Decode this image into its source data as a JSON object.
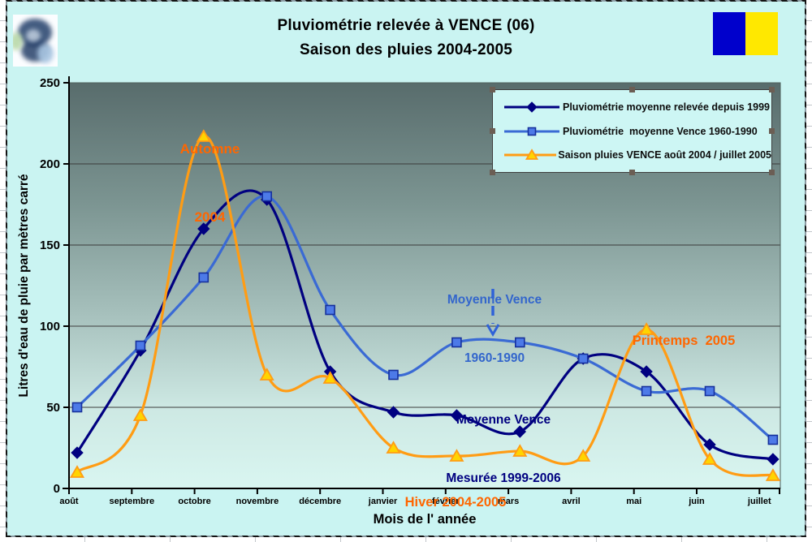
{
  "chart_data": {
    "type": "line",
    "title": [
      "Pluviométrie relevée à VENCE (06)",
      "Saison des pluies 2004-2005"
    ],
    "categories": [
      "août",
      "septembre",
      "octobre",
      "novembre",
      "décembre",
      "janvier",
      "février",
      "mars",
      "avril",
      "mai",
      "juin",
      "juillet"
    ],
    "series": [
      {
        "name": "Pluviométrie moyenne relevée depuis 1999",
        "color": "#000080",
        "marker": "diamond",
        "marker_fill": "#000080",
        "values": [
          22,
          85,
          160,
          178,
          72,
          47,
          45,
          35,
          80,
          72,
          27,
          18
        ]
      },
      {
        "name": "Pluviométrie  moyenne Vence 1960-1990",
        "color": "#3a6ad4",
        "marker": "square",
        "marker_fill": "#4d7ae8",
        "values": [
          50,
          88,
          130,
          180,
          110,
          70,
          90,
          90,
          80,
          60,
          60,
          30
        ]
      },
      {
        "name": "Saison pluies VENCE août 2004 / juillet 2005",
        "color": "#ff9c14",
        "marker": "triangle-up",
        "marker_fill": "#ffd400",
        "values": [
          10,
          45,
          217,
          70,
          68,
          25,
          20,
          23,
          20,
          98,
          18,
          8
        ]
      }
    ],
    "xlabel": "Mois de l' année",
    "ylabel": "Litres d'eau de pluie par mètres carré",
    "ylim": [
      0,
      250
    ],
    "yticks": [
      0,
      50,
      100,
      150,
      200,
      250
    ],
    "grid": true,
    "smooth": true,
    "legend_position": "top-right",
    "annotations": [
      {
        "lines": [
          "Automne",
          "2004"
        ],
        "color": "#ff6600"
      },
      {
        "lines": [
          "Moyenne Vence",
          "1960-1990"
        ],
        "color": "#3366cc"
      },
      {
        "lines": [
          "Moyenne Vence",
          "Mesurée 1999-2006"
        ],
        "color": "#000080"
      },
      {
        "lines": [
          "Hiver 2004-2005"
        ],
        "color": "#ff6600"
      },
      {
        "lines": [
          "Printemps  2005"
        ],
        "color": "#ff6600"
      }
    ],
    "arrow": {
      "x": 607,
      "y_from": 356,
      "y_to": 399,
      "color": "#2f62d8"
    }
  },
  "colors": {
    "chart_background": "#caf4f2",
    "plot_gradient_top": "#586c6c",
    "plot_gradient_bottom": "#d9f6f1",
    "annotation_orange": "#ff6600",
    "annotation_blue": "#3366cc",
    "annotation_navy": "#000080",
    "flag_blue": "#0000cc",
    "flag_yellow": "#ffe800"
  },
  "logo": {
    "description": "blurry photo thumbnail"
  },
  "flag": {
    "left_color": "#0000cc",
    "right_color": "#ffe800"
  }
}
